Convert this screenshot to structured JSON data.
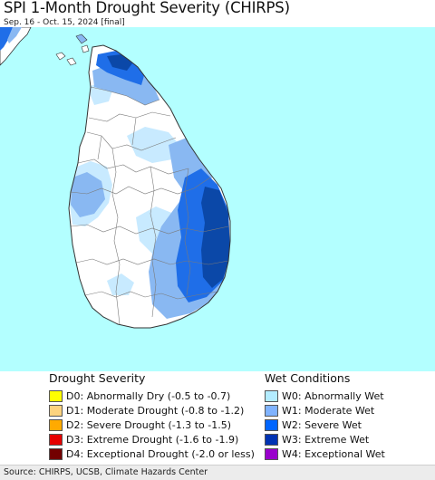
{
  "map": {
    "title": "SPI 1-Month Drought Severity (CHIRPS)",
    "subtitle": "Sep. 16 - Oct. 15, 2024 [final]",
    "colors": {
      "ocean": "#b3ffff",
      "land": "#ffffff",
      "border": "#777777",
      "coast": "#333333",
      "w0": "#c8eaff",
      "w1": "#89b8f2",
      "w2": "#1f6ee8",
      "w3": "#0b48a8"
    }
  },
  "legend": {
    "drought_heading": "Drought Severity",
    "wet_heading": "Wet Conditions",
    "drought_items": [
      {
        "code": "D0:",
        "label": "Abnormally Dry (-0.5 to -0.7)",
        "color": "#ffff00"
      },
      {
        "code": "D1:",
        "label": "Moderate Drought (-0.8 to -1.2)",
        "color": "#fcd37f"
      },
      {
        "code": "D2:",
        "label": "Severe Drought (-1.3 to -1.5)",
        "color": "#ffaa00"
      },
      {
        "code": "D3:",
        "label": "Extreme Drought (-1.6 to -1.9)",
        "color": "#e60000"
      },
      {
        "code": "D4:",
        "label": "Exceptional Drought (-2.0 or less)",
        "color": "#730000"
      }
    ],
    "wet_items": [
      {
        "code": "W0:",
        "label": "Abnormally Wet",
        "color": "#b3ecff"
      },
      {
        "code": "W1:",
        "label": "Moderate Wet",
        "color": "#80b3ff"
      },
      {
        "code": "W2:",
        "label": "Severe Wet",
        "color": "#0066ff"
      },
      {
        "code": "W3:",
        "label": "Extreme Wet",
        "color": "#0033b3"
      },
      {
        "code": "W4:",
        "label": "Exceptional Wet",
        "color": "#9900cc"
      }
    ]
  },
  "footer": {
    "source": "Source: CHIRPS, UCSB, Climate Hazards Center"
  }
}
